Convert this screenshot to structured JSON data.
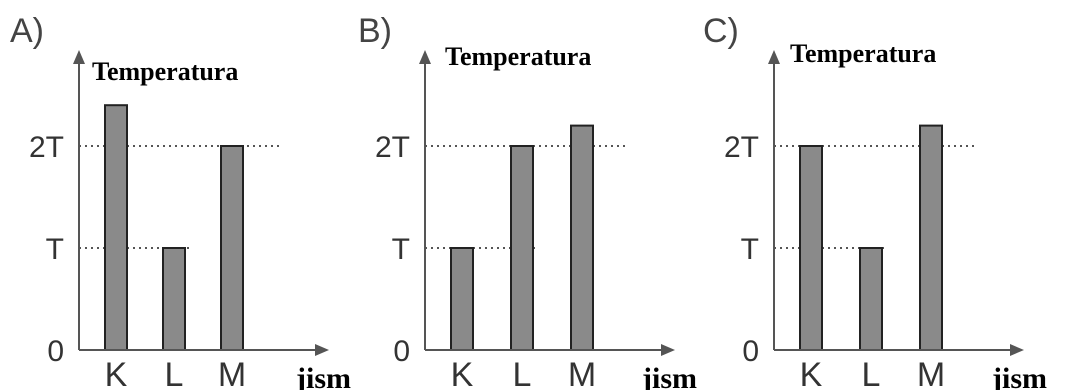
{
  "chart_data": [
    {
      "type": "bar",
      "panel_label": "A)",
      "ylabel": "Temperatura",
      "xlabel": "jism",
      "categories": [
        "K",
        "L",
        "M"
      ],
      "values": [
        2.4,
        1,
        2
      ],
      "yticks": [
        "0",
        "T",
        "2T"
      ],
      "ytick_values": [
        0,
        1,
        2
      ],
      "reference_lines": [
        1,
        2
      ],
      "bar_color": "#8a8a8a"
    },
    {
      "type": "bar",
      "panel_label": "B)",
      "ylabel": "Temperatura",
      "xlabel": "jism",
      "categories": [
        "K",
        "L",
        "M"
      ],
      "values": [
        1,
        2,
        2.2
      ],
      "yticks": [
        "0",
        "T",
        "2T"
      ],
      "ytick_values": [
        0,
        1,
        2
      ],
      "reference_lines": [
        1,
        2
      ],
      "bar_color": "#8a8a8a"
    },
    {
      "type": "bar",
      "panel_label": "C)",
      "ylabel": "Temperatura",
      "xlabel": "jism",
      "categories": [
        "K",
        "L",
        "M"
      ],
      "values": [
        2,
        1,
        2.2
      ],
      "yticks": [
        "0",
        "T",
        "2T"
      ],
      "ytick_values": [
        0,
        1,
        2
      ],
      "reference_lines": [
        1,
        2
      ],
      "bar_color": "#8a8a8a"
    }
  ]
}
